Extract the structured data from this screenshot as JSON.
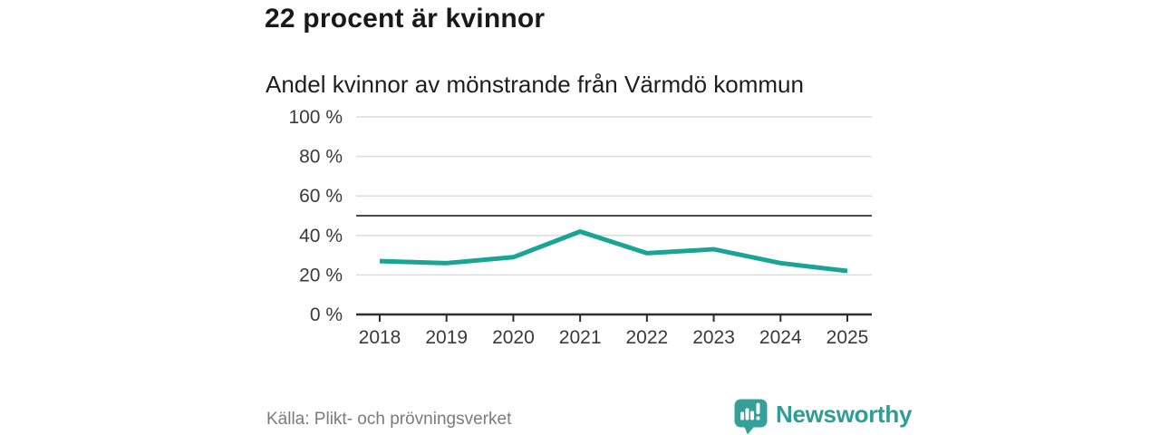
{
  "header": {
    "title": "22 procent är kvinnor"
  },
  "chart": {
    "title": "Andel kvinnor av mönstrande från Värmdö kommun"
  },
  "chart_data": {
    "type": "line",
    "title": "Andel kvinnor av mönstrande från Värmdö kommun",
    "categories": [
      "2018",
      "2019",
      "2020",
      "2021",
      "2022",
      "2023",
      "2024",
      "2025"
    ],
    "values": [
      27,
      26,
      29,
      42,
      31,
      33,
      26,
      22
    ],
    "series_name": "Andel kvinnor av mönstrande",
    "xlabel": "",
    "ylabel": "",
    "ylim": [
      0,
      100
    ],
    "yticks": [
      0,
      20,
      40,
      60,
      80,
      100
    ],
    "ytick_suffix": " %",
    "reference_line": 50,
    "grid": "horizontal",
    "legend": "none",
    "line_color": "#1aa496",
    "gridline_color": "#dcdcdc",
    "reference_line_color": "#4a4a4a",
    "axis_color": "#2e2e2e",
    "tick_label_color": "#3a3a3a"
  },
  "footer": {
    "source": "Källa: Plikt- och prövningsverket",
    "brand": "Newsworthy",
    "brand_color": "#2f9d95"
  }
}
